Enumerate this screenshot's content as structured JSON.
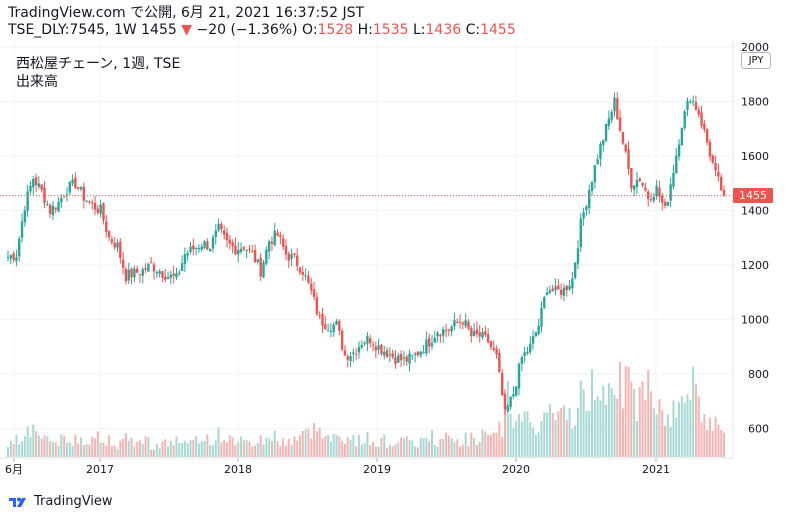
{
  "header": {
    "line1": "TradingView.com で公開, 6月 21, 2021 16:37:52 JST",
    "symbol": "TSE_DLY:7545, 1W 1455",
    "change_arrow": "▼",
    "change": "−20 (−1.36%)",
    "o_label": "O:",
    "o_value": "1528",
    "h_label": "H:",
    "h_value": "1535",
    "l_label": "L:",
    "l_value": "1436",
    "c_label": "C:",
    "c_value": "1455"
  },
  "legend": {
    "title": "西松屋チェーン, 1週, TSE",
    "volume_label": "出来高"
  },
  "currency": "JPY",
  "last_price_tag": "1455",
  "footer": {
    "brand": "TradingView"
  },
  "colors": {
    "up": "#26a69a",
    "down": "#ef5350",
    "up_volume": "#a8d8d3",
    "down_volume": "#f5b4b2",
    "last_line": "#ef5350"
  },
  "chart_data": {
    "type": "candlestick",
    "timeframe": "1W",
    "ylim": [
      500,
      2000
    ],
    "y_ticks": [
      600,
      800,
      1000,
      1200,
      1400,
      1600,
      1800,
      2000
    ],
    "x_ticks": [
      "6月",
      "2017",
      "2018",
      "2019",
      "2020",
      "2021"
    ],
    "last_price": 1455,
    "close_series": [
      1230,
      1240,
      1420,
      1520,
      1470,
      1400,
      1430,
      1480,
      1500,
      1450,
      1420,
      1400,
      1300,
      1270,
      1160,
      1170,
      1180,
      1200,
      1180,
      1160,
      1150,
      1240,
      1260,
      1280,
      1270,
      1330,
      1280,
      1260,
      1270,
      1240,
      1180,
      1290,
      1310,
      1240,
      1220,
      1180,
      1100,
      1000,
      980,
      980,
      870,
      880,
      920,
      930,
      900,
      880,
      860,
      850,
      860,
      890,
      920,
      960,
      960,
      980,
      1000,
      940,
      940,
      920,
      860,
      650,
      730,
      860,
      900,
      980,
      1120,
      1100,
      1110,
      1150,
      1350,
      1480,
      1600,
      1700,
      1800,
      1650,
      1500,
      1520,
      1450,
      1480,
      1400,
      1550,
      1720,
      1820,
      1760,
      1650,
      1530,
      1455
    ],
    "volume_relative": [
      0.1,
      0.12,
      0.2,
      0.18,
      0.14,
      0.1,
      0.11,
      0.09,
      0.13,
      0.12,
      0.14,
      0.1,
      0.12,
      0.09,
      0.12,
      0.1,
      0.11,
      0.08,
      0.09,
      0.1,
      0.11,
      0.09,
      0.1,
      0.13,
      0.12,
      0.15,
      0.11,
      0.12,
      0.09,
      0.1,
      0.12,
      0.14,
      0.1,
      0.11,
      0.13,
      0.15,
      0.18,
      0.2,
      0.15,
      0.12,
      0.14,
      0.11,
      0.12,
      0.1,
      0.11,
      0.09,
      0.12,
      0.1,
      0.09,
      0.11,
      0.13,
      0.1,
      0.12,
      0.11,
      0.12,
      0.13,
      0.14,
      0.12,
      0.18,
      0.4,
      0.28,
      0.22,
      0.2,
      0.24,
      0.3,
      0.25,
      0.28,
      0.3,
      0.38,
      0.45,
      0.5,
      0.55,
      0.6,
      0.45,
      0.4,
      0.38,
      0.5,
      0.35,
      0.3,
      0.28,
      0.45,
      0.55,
      0.32,
      0.25,
      0.22,
      0.18
    ]
  }
}
